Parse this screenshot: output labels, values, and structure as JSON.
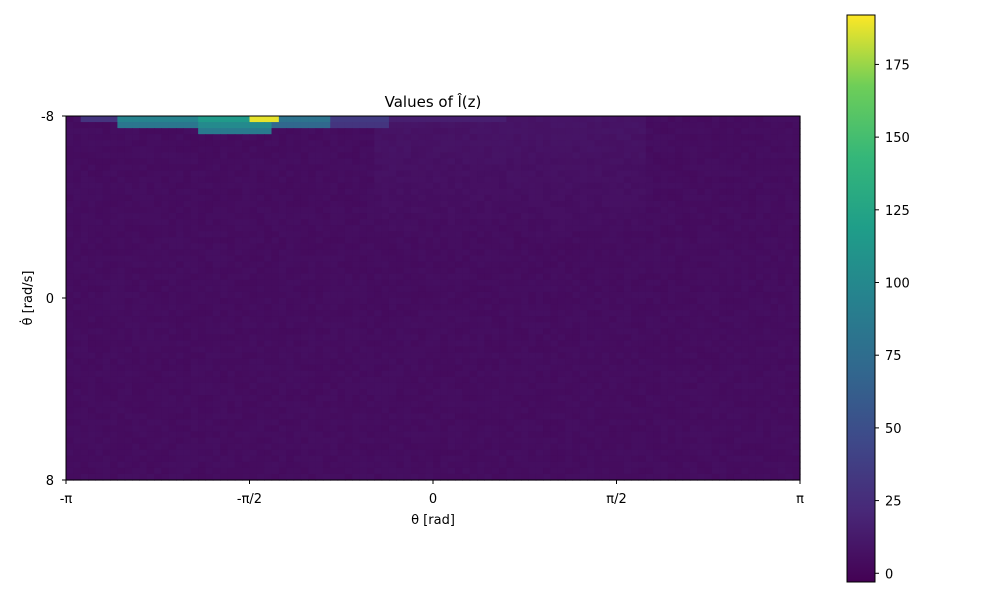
{
  "chart_data": {
    "type": "heatmap",
    "title": "Values of l̂(z)",
    "xlabel": "θ [rad]",
    "ylabel": "θ̇ [rad/s]",
    "xlim": [
      -3.14159,
      3.14159
    ],
    "ylim": [
      -8,
      8
    ],
    "y_inverted": true,
    "xticks": [
      {
        "value": -3.14159,
        "label": "-π"
      },
      {
        "value": -1.5708,
        "label": "-π/2"
      },
      {
        "value": 0,
        "label": "0"
      },
      {
        "value": 1.5708,
        "label": "π/2"
      },
      {
        "value": 3.14159,
        "label": "π"
      }
    ],
    "yticks": [
      {
        "value": -8,
        "label": "-8"
      },
      {
        "value": 0,
        "label": "0"
      },
      {
        "value": 8,
        "label": "8"
      }
    ],
    "colormap": "viridis",
    "colorbar": {
      "range": [
        -3,
        192
      ],
      "ticks": [
        0,
        25,
        50,
        75,
        100,
        125,
        150,
        175
      ],
      "labels": [
        "0",
        "25",
        "50",
        "75",
        "100",
        "125",
        "150",
        "175"
      ]
    },
    "grid_shape": {
      "rows": 60,
      "cols": 100
    },
    "background_level": 3,
    "hotspots": [
      {
        "theta_from": -3.0,
        "theta_to": -2.7,
        "row_from": 0,
        "row_to": 0,
        "value": 30
      },
      {
        "theta_from": -2.7,
        "theta_to": -2.0,
        "row_from": 0,
        "row_to": 1,
        "value": 95
      },
      {
        "theta_from": -2.0,
        "theta_to": -1.4,
        "row_from": 0,
        "row_to": 2,
        "value": 115
      },
      {
        "theta_from": -1.6,
        "theta_to": -1.35,
        "row_from": 0,
        "row_to": 0,
        "value": 188
      },
      {
        "theta_from": -1.4,
        "theta_to": -0.9,
        "row_from": 0,
        "row_to": 1,
        "value": 80
      },
      {
        "theta_from": -0.9,
        "theta_to": -0.4,
        "row_from": 0,
        "row_to": 1,
        "value": 35
      },
      {
        "theta_from": -0.4,
        "theta_to": 0.6,
        "row_from": 0,
        "row_to": 0,
        "value": 15
      }
    ]
  }
}
